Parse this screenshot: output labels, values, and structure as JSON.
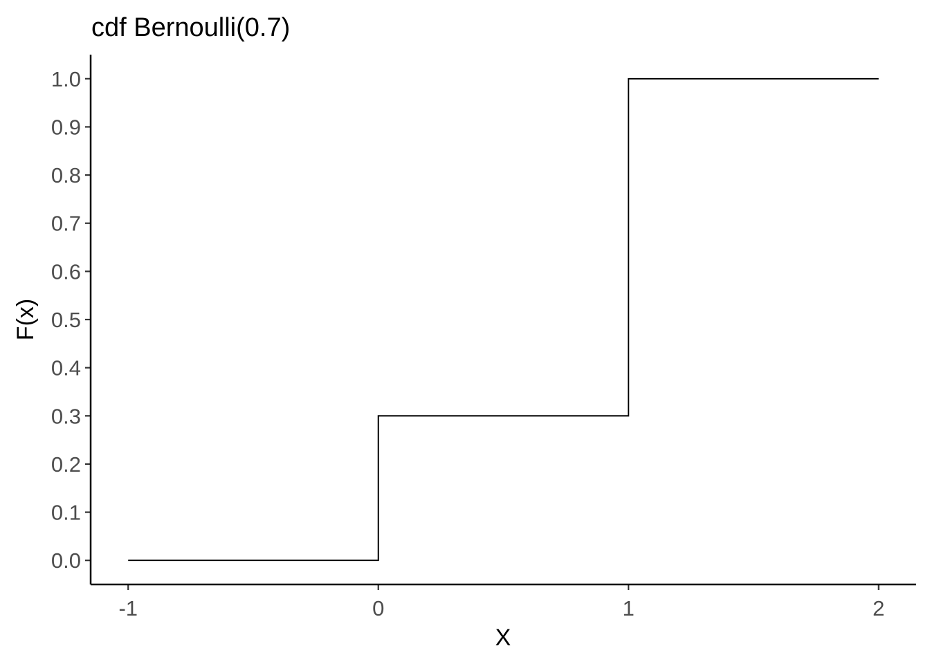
{
  "chart_data": {
    "type": "line",
    "subtype": "step",
    "title": "cdf Bernoulli(0.7)",
    "xlabel": "X",
    "ylabel": "F(x)",
    "xlim": [
      -1.15,
      2.15
    ],
    "ylim": [
      -0.05,
      1.05
    ],
    "x_ticks": [
      -1,
      0,
      1,
      2
    ],
    "x_tick_labels": [
      "-1",
      "0",
      "1",
      "2"
    ],
    "y_ticks": [
      0.0,
      0.1,
      0.2,
      0.3,
      0.4,
      0.5,
      0.6,
      0.7,
      0.8,
      0.9,
      1.0
    ],
    "y_tick_labels": [
      "0.0",
      "0.1",
      "0.2",
      "0.3",
      "0.4",
      "0.5",
      "0.6",
      "0.7",
      "0.8",
      "0.9",
      "1.0"
    ],
    "grid": false,
    "series": [
      {
        "x": [
          -1,
          0,
          1,
          2
        ],
        "y": [
          0.0,
          0.3,
          1.0,
          1.0
        ],
        "color": "#000000"
      }
    ]
  }
}
